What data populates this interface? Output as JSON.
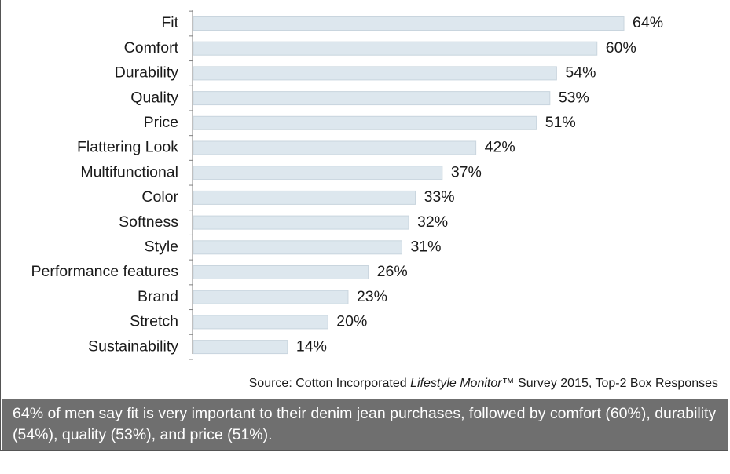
{
  "chart_data": {
    "type": "bar",
    "orientation": "horizontal",
    "categories": [
      "Fit",
      "Comfort",
      "Durability",
      "Quality",
      "Price",
      "Flattering Look",
      "Multifunctional",
      "Color",
      "Softness",
      "Style",
      "Performance features",
      "Brand",
      "Stretch",
      "Sustainability"
    ],
    "values": [
      64,
      60,
      54,
      53,
      51,
      42,
      37,
      33,
      32,
      31,
      26,
      23,
      20,
      14
    ],
    "value_labels": [
      "64%",
      "60%",
      "54%",
      "53%",
      "51%",
      "42%",
      "37%",
      "33%",
      "32%",
      "31%",
      "26%",
      "23%",
      "20%",
      "14%"
    ],
    "unit": "%",
    "grid": false,
    "legend": "none",
    "bar_color": "#dde7ee"
  },
  "source": {
    "prefix": "Source: Cotton Incorporated ",
    "italic": "Lifestyle Monitor™",
    "suffix": " Survey 2015, Top-2 Box Responses"
  },
  "caption": "64% of men say fit is very important to their denim jean purchases, followed by comfort (60%), durability (54%), quality (53%), and price (51%)."
}
